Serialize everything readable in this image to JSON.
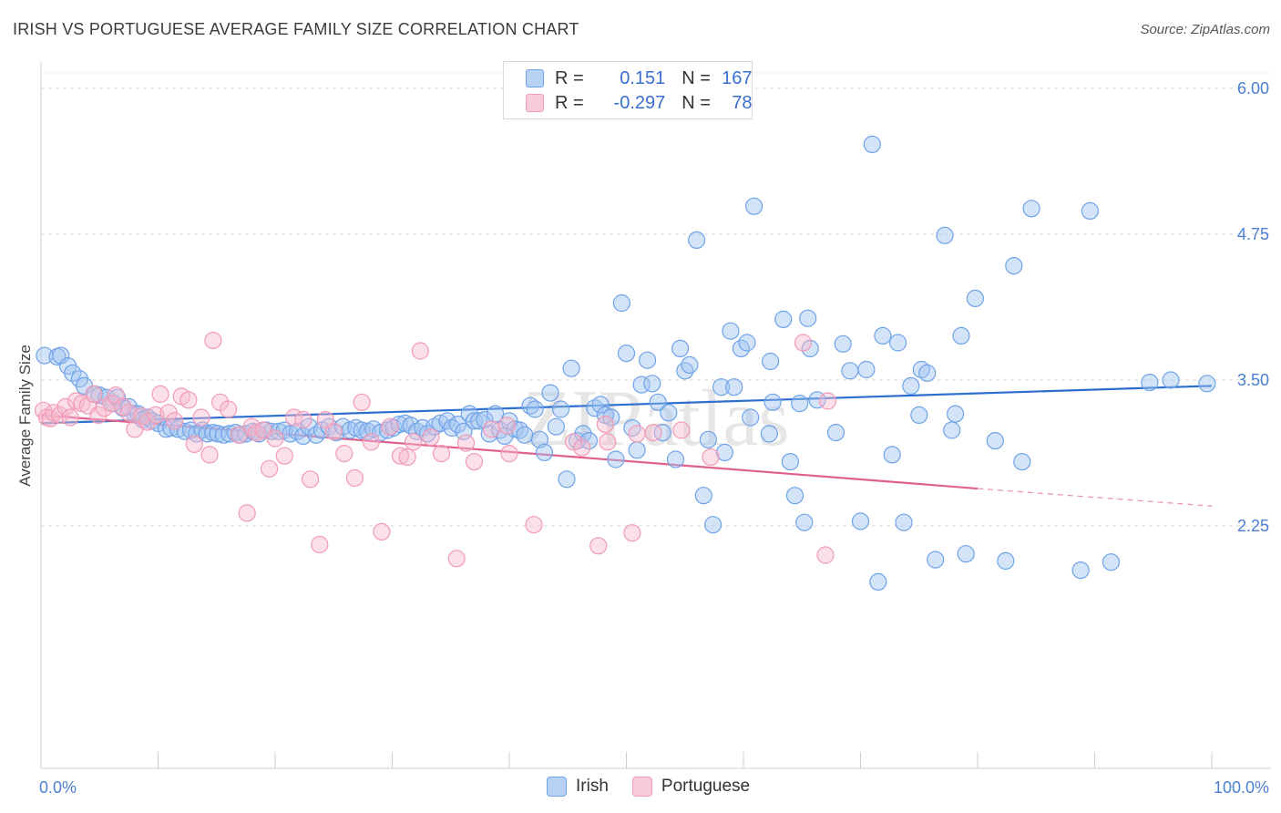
{
  "title": "IRISH VS PORTUGUESE AVERAGE FAMILY SIZE CORRELATION CHART",
  "source": "Source: ZipAtlas.com",
  "watermark": "ZIPatlas",
  "legend": {
    "rows": [
      {
        "r_label": "R = ",
        "r_value": "0.151",
        "n_label": "N = ",
        "n_value": "167",
        "color": "#6fa3e8"
      },
      {
        "r_label": "R = ",
        "r_value": "-0.297",
        "n_label": "N = ",
        "n_value": "78",
        "color": "#f29ab6"
      }
    ]
  },
  "bottom_legend": [
    {
      "label": "Irish",
      "color": "#6fa3e8"
    },
    {
      "label": "Portuguese",
      "color": "#f29ab6"
    }
  ],
  "chart_data": {
    "type": "scatter",
    "ylabel": "Average Family Size",
    "xlabel": "",
    "x_tick_labels": [
      "0.0%",
      "100.0%"
    ],
    "y_tick_labels": [
      "2.25",
      "3.50",
      "4.75",
      "6.00"
    ],
    "xlim": [
      0,
      100
    ],
    "ylim": [
      1.0,
      6.1
    ],
    "grid": true,
    "series": [
      {
        "name": "Irish",
        "color": "#6fa3e8",
        "line_color": "#2d6fd0",
        "trend": {
          "x": [
            0,
            100
          ],
          "y": [
            3.13,
            3.45
          ]
        },
        "points": [
          [
            0.3,
            3.71
          ],
          [
            1.4,
            3.7
          ],
          [
            1.7,
            3.71
          ],
          [
            2.3,
            3.62
          ],
          [
            2.7,
            3.56
          ],
          [
            3.3,
            3.51
          ],
          [
            3.7,
            3.45
          ],
          [
            4.6,
            3.38
          ],
          [
            5.0,
            3.37
          ],
          [
            5.6,
            3.35
          ],
          [
            6.2,
            3.3
          ],
          [
            6.5,
            3.35
          ],
          [
            7.0,
            3.26
          ],
          [
            7.5,
            3.27
          ],
          [
            8.0,
            3.21
          ],
          [
            8.3,
            3.21
          ],
          [
            8.7,
            3.16
          ],
          [
            9.1,
            3.18
          ],
          [
            9.5,
            3.15
          ],
          [
            10.0,
            3.13
          ],
          [
            10.7,
            3.08
          ],
          [
            11.1,
            3.09
          ],
          [
            11.7,
            3.08
          ],
          [
            12.3,
            3.06
          ],
          [
            12.8,
            3.07
          ],
          [
            13.3,
            3.04
          ],
          [
            13.8,
            3.07
          ],
          [
            14.2,
            3.04
          ],
          [
            14.7,
            3.05
          ],
          [
            15.1,
            3.04
          ],
          [
            15.6,
            3.03
          ],
          [
            16.1,
            3.04
          ],
          [
            16.6,
            3.05
          ],
          [
            17.0,
            3.03
          ],
          [
            17.5,
            3.04
          ],
          [
            18.1,
            3.06
          ],
          [
            18.6,
            3.04
          ],
          [
            19.2,
            3.07
          ],
          [
            19.7,
            3.06
          ],
          [
            20.3,
            3.06
          ],
          [
            20.8,
            3.07
          ],
          [
            21.3,
            3.04
          ],
          [
            21.9,
            3.06
          ],
          [
            22.4,
            3.02
          ],
          [
            22.9,
            3.1
          ],
          [
            23.5,
            3.03
          ],
          [
            24.0,
            3.07
          ],
          [
            24.6,
            3.1
          ],
          [
            25.2,
            3.05
          ],
          [
            25.8,
            3.1
          ],
          [
            26.4,
            3.07
          ],
          [
            26.9,
            3.09
          ],
          [
            27.4,
            3.07
          ],
          [
            27.9,
            3.06
          ],
          [
            28.4,
            3.08
          ],
          [
            29.0,
            3.05
          ],
          [
            29.6,
            3.07
          ],
          [
            30.1,
            3.09
          ],
          [
            30.6,
            3.12
          ],
          [
            31.1,
            3.13
          ],
          [
            31.6,
            3.11
          ],
          [
            32.1,
            3.06
          ],
          [
            32.6,
            3.09
          ],
          [
            33.0,
            3.04
          ],
          [
            33.6,
            3.1
          ],
          [
            34.1,
            3.13
          ],
          [
            34.7,
            3.15
          ],
          [
            35.1,
            3.09
          ],
          [
            35.6,
            3.12
          ],
          [
            36.1,
            3.06
          ],
          [
            36.6,
            3.21
          ],
          [
            37.0,
            3.15
          ],
          [
            37.4,
            3.15
          ],
          [
            37.9,
            3.16
          ],
          [
            38.3,
            3.04
          ],
          [
            38.8,
            3.21
          ],
          [
            39.2,
            3.07
          ],
          [
            39.6,
            3.02
          ],
          [
            40.0,
            3.15
          ],
          [
            40.5,
            3.08
          ],
          [
            40.9,
            3.07
          ],
          [
            41.3,
            3.03
          ],
          [
            41.8,
            3.28
          ],
          [
            42.2,
            3.25
          ],
          [
            42.6,
            2.99
          ],
          [
            43.0,
            2.88
          ],
          [
            43.5,
            3.39
          ],
          [
            44.0,
            3.1
          ],
          [
            44.4,
            3.25
          ],
          [
            44.9,
            2.65
          ],
          [
            45.3,
            3.6
          ],
          [
            45.8,
            2.98
          ],
          [
            46.3,
            3.04
          ],
          [
            46.8,
            2.98
          ],
          [
            47.3,
            3.26
          ],
          [
            47.8,
            3.29
          ],
          [
            48.2,
            3.2
          ],
          [
            48.7,
            3.18
          ],
          [
            49.1,
            2.82
          ],
          [
            49.6,
            4.16
          ],
          [
            50.0,
            3.73
          ],
          [
            50.5,
            3.09
          ],
          [
            50.9,
            2.9
          ],
          [
            51.3,
            3.46
          ],
          [
            51.8,
            3.67
          ],
          [
            52.2,
            3.47
          ],
          [
            52.7,
            3.31
          ],
          [
            53.1,
            3.05
          ],
          [
            53.6,
            3.22
          ],
          [
            54.2,
            2.82
          ],
          [
            54.6,
            3.77
          ],
          [
            55.0,
            3.58
          ],
          [
            55.4,
            3.63
          ],
          [
            56.0,
            4.7
          ],
          [
            56.6,
            2.51
          ],
          [
            57.0,
            2.99
          ],
          [
            57.4,
            2.26
          ],
          [
            58.1,
            3.44
          ],
          [
            58.4,
            2.88
          ],
          [
            58.9,
            3.92
          ],
          [
            59.2,
            3.44
          ],
          [
            59.8,
            3.77
          ],
          [
            60.3,
            3.82
          ],
          [
            60.6,
            3.18
          ],
          [
            60.9,
            4.99
          ],
          [
            62.2,
            3.04
          ],
          [
            62.3,
            3.66
          ],
          [
            62.5,
            3.31
          ],
          [
            63.4,
            4.02
          ],
          [
            64.0,
            2.8
          ],
          [
            64.4,
            2.51
          ],
          [
            64.8,
            3.3
          ],
          [
            65.2,
            2.28
          ],
          [
            65.5,
            4.03
          ],
          [
            65.7,
            3.77
          ],
          [
            66.3,
            3.33
          ],
          [
            67.9,
            3.05
          ],
          [
            68.5,
            3.81
          ],
          [
            69.1,
            3.58
          ],
          [
            70.0,
            2.29
          ],
          [
            70.5,
            3.59
          ],
          [
            71.0,
            5.52
          ],
          [
            71.5,
            1.77
          ],
          [
            71.9,
            3.88
          ],
          [
            72.7,
            2.86
          ],
          [
            73.2,
            3.82
          ],
          [
            73.7,
            2.28
          ],
          [
            74.3,
            3.45
          ],
          [
            75.0,
            3.2
          ],
          [
            75.2,
            3.59
          ],
          [
            75.7,
            3.56
          ],
          [
            76.4,
            1.96
          ],
          [
            77.2,
            4.74
          ],
          [
            77.8,
            3.07
          ],
          [
            78.1,
            3.21
          ],
          [
            78.6,
            3.88
          ],
          [
            79.0,
            2.01
          ],
          [
            79.8,
            4.2
          ],
          [
            81.5,
            2.98
          ],
          [
            82.4,
            1.95
          ],
          [
            83.1,
            4.48
          ],
          [
            83.8,
            2.8
          ],
          [
            84.6,
            4.97
          ],
          [
            88.8,
            1.87
          ],
          [
            89.6,
            4.95
          ],
          [
            91.4,
            1.94
          ],
          [
            94.7,
            3.48
          ],
          [
            96.5,
            3.5
          ],
          [
            99.6,
            3.47
          ]
        ]
      },
      {
        "name": "Portuguese",
        "color": "#f29ab6",
        "line_color": "#e0608c",
        "trend": {
          "x": [
            0,
            80
          ],
          "y": [
            3.2,
            2.57
          ]
        },
        "trend_dashed": {
          "x": [
            80,
            100
          ],
          "y": [
            2.57,
            2.42
          ]
        },
        "points": [
          [
            0.2,
            3.24
          ],
          [
            0.5,
            3.18
          ],
          [
            0.8,
            3.17
          ],
          [
            1.1,
            3.22
          ],
          [
            1.6,
            3.2
          ],
          [
            2.1,
            3.27
          ],
          [
            2.5,
            3.18
          ],
          [
            3.0,
            3.32
          ],
          [
            3.5,
            3.3
          ],
          [
            4.0,
            3.28
          ],
          [
            4.5,
            3.38
          ],
          [
            4.9,
            3.2
          ],
          [
            5.4,
            3.26
          ],
          [
            6.0,
            3.3
          ],
          [
            6.4,
            3.37
          ],
          [
            7.0,
            3.27
          ],
          [
            7.5,
            3.22
          ],
          [
            8.0,
            3.08
          ],
          [
            8.6,
            3.19
          ],
          [
            9.1,
            3.14
          ],
          [
            9.8,
            3.2
          ],
          [
            10.2,
            3.38
          ],
          [
            10.9,
            3.22
          ],
          [
            11.4,
            3.15
          ],
          [
            12.0,
            3.36
          ],
          [
            12.6,
            3.33
          ],
          [
            13.1,
            2.95
          ],
          [
            13.7,
            3.18
          ],
          [
            14.4,
            2.86
          ],
          [
            14.7,
            3.84
          ],
          [
            15.3,
            3.31
          ],
          [
            16.0,
            3.25
          ],
          [
            16.9,
            3.03
          ],
          [
            17.6,
            2.36
          ],
          [
            18.0,
            3.1
          ],
          [
            18.4,
            3.05
          ],
          [
            19.0,
            3.07
          ],
          [
            19.5,
            2.74
          ],
          [
            20.0,
            3.0
          ],
          [
            20.8,
            2.85
          ],
          [
            21.6,
            3.18
          ],
          [
            22.4,
            3.16
          ],
          [
            23.0,
            2.65
          ],
          [
            23.8,
            2.09
          ],
          [
            24.3,
            3.16
          ],
          [
            25.0,
            3.06
          ],
          [
            25.9,
            2.87
          ],
          [
            26.8,
            2.66
          ],
          [
            27.4,
            3.31
          ],
          [
            28.2,
            2.97
          ],
          [
            29.1,
            2.2
          ],
          [
            29.8,
            3.1
          ],
          [
            30.7,
            2.85
          ],
          [
            31.3,
            2.84
          ],
          [
            31.8,
            2.97
          ],
          [
            32.4,
            3.75
          ],
          [
            33.3,
            3.01
          ],
          [
            34.2,
            2.87
          ],
          [
            35.5,
            1.97
          ],
          [
            36.3,
            2.96
          ],
          [
            37.0,
            2.8
          ],
          [
            38.5,
            3.08
          ],
          [
            39.8,
            3.11
          ],
          [
            40.0,
            2.87
          ],
          [
            42.1,
            2.26
          ],
          [
            45.5,
            2.97
          ],
          [
            46.2,
            2.92
          ],
          [
            47.6,
            2.08
          ],
          [
            48.2,
            3.12
          ],
          [
            48.4,
            2.97
          ],
          [
            50.5,
            2.19
          ],
          [
            50.9,
            3.04
          ],
          [
            52.3,
            3.05
          ],
          [
            54.7,
            3.07
          ],
          [
            57.2,
            2.84
          ],
          [
            65.1,
            3.82
          ],
          [
            67.0,
            2.0
          ],
          [
            67.2,
            3.32
          ]
        ]
      }
    ]
  }
}
